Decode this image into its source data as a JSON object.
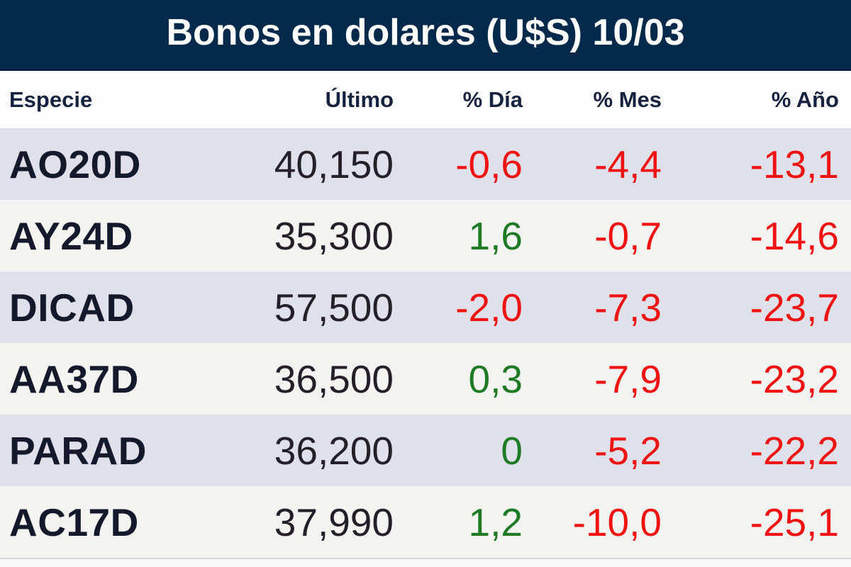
{
  "title": "Bonos en dolares (U$S) 10/03",
  "columns": [
    "Especie",
    "Último",
    "% Día",
    "% Mes",
    "% Año"
  ],
  "rows": [
    {
      "especie": "AO20D",
      "ultimo": "40,150",
      "dia": "-0,6",
      "mes": "-4,4",
      "anio": "-13,1"
    },
    {
      "especie": "AY24D",
      "ultimo": "35,300",
      "dia": "1,6",
      "mes": "-0,7",
      "anio": "-14,6"
    },
    {
      "especie": "DICAD",
      "ultimo": "57,500",
      "dia": "-2,0",
      "mes": "-7,3",
      "anio": "-23,7"
    },
    {
      "especie": "AA37D",
      "ultimo": "36,500",
      "dia": "0,3",
      "mes": "-7,9",
      "anio": "-23,2"
    },
    {
      "especie": "PARAD",
      "ultimo": "36,200",
      "dia": "0",
      "mes": "-5,2",
      "anio": "-22,2"
    },
    {
      "especie": "AC17D",
      "ultimo": "37,990",
      "dia": "1,2",
      "mes": "-10,0",
      "anio": "-25,1"
    }
  ],
  "colors": {
    "header_bg": "#032a4a",
    "title_color": "#ffffff",
    "colhead_color": "#16233e",
    "especie_color": "#141a2b",
    "num_color": "#232029",
    "positive": "#1e7a24",
    "negative": "#f11212",
    "row_dark": "#dfe0e9",
    "row_light": "#f3f3f1"
  },
  "chart_data": {
    "type": "table",
    "title": "Bonos en dolares (U$S) 10/03",
    "columns": [
      "Especie",
      "Último",
      "% Día",
      "% Mes",
      "% Año"
    ],
    "rows": [
      [
        "AO20D",
        "40,150",
        "-0,6",
        "-4,4",
        "-13,1"
      ],
      [
        "AY24D",
        "35,300",
        "1,6",
        "-0,7",
        "-14,6"
      ],
      [
        "DICAD",
        "57,500",
        "-2,0",
        "-7,3",
        "-23,7"
      ],
      [
        "AA37D",
        "36,500",
        "0,3",
        "-7,9",
        "-23,2"
      ],
      [
        "PARAD",
        "36,200",
        "0",
        "-5,2",
        "-22,2"
      ],
      [
        "AC17D",
        "37,990",
        "1,2",
        "-10,0",
        "-25,1"
      ]
    ],
    "layout_hints": {
      "value_color_rule": "negative values red, zero/positive values green",
      "alignment": "first column left, all others right",
      "row_striping": "alternating lavender-gray / off-white starting gray"
    }
  }
}
